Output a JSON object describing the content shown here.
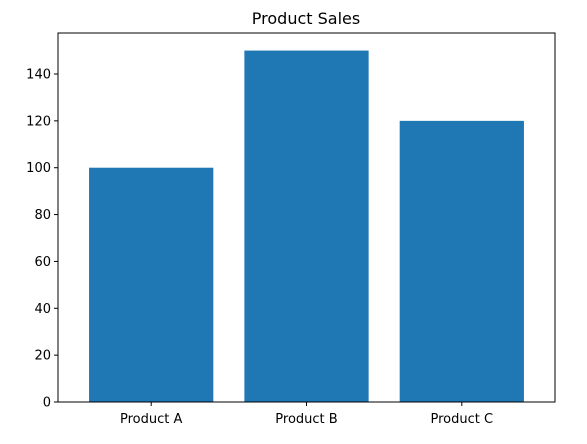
{
  "chart_data": {
    "type": "bar",
    "title": "Product Sales",
    "xlabel": "",
    "ylabel": "",
    "categories": [
      "Product A",
      "Product B",
      "Product C"
    ],
    "values": [
      100,
      150,
      120
    ],
    "ylim": [
      0,
      157.5
    ],
    "yticks": [
      0,
      20,
      40,
      60,
      80,
      100,
      120,
      140
    ],
    "bar_color": "#1f77b4",
    "axis_color": "#000000",
    "grid": false,
    "legend": "none"
  }
}
